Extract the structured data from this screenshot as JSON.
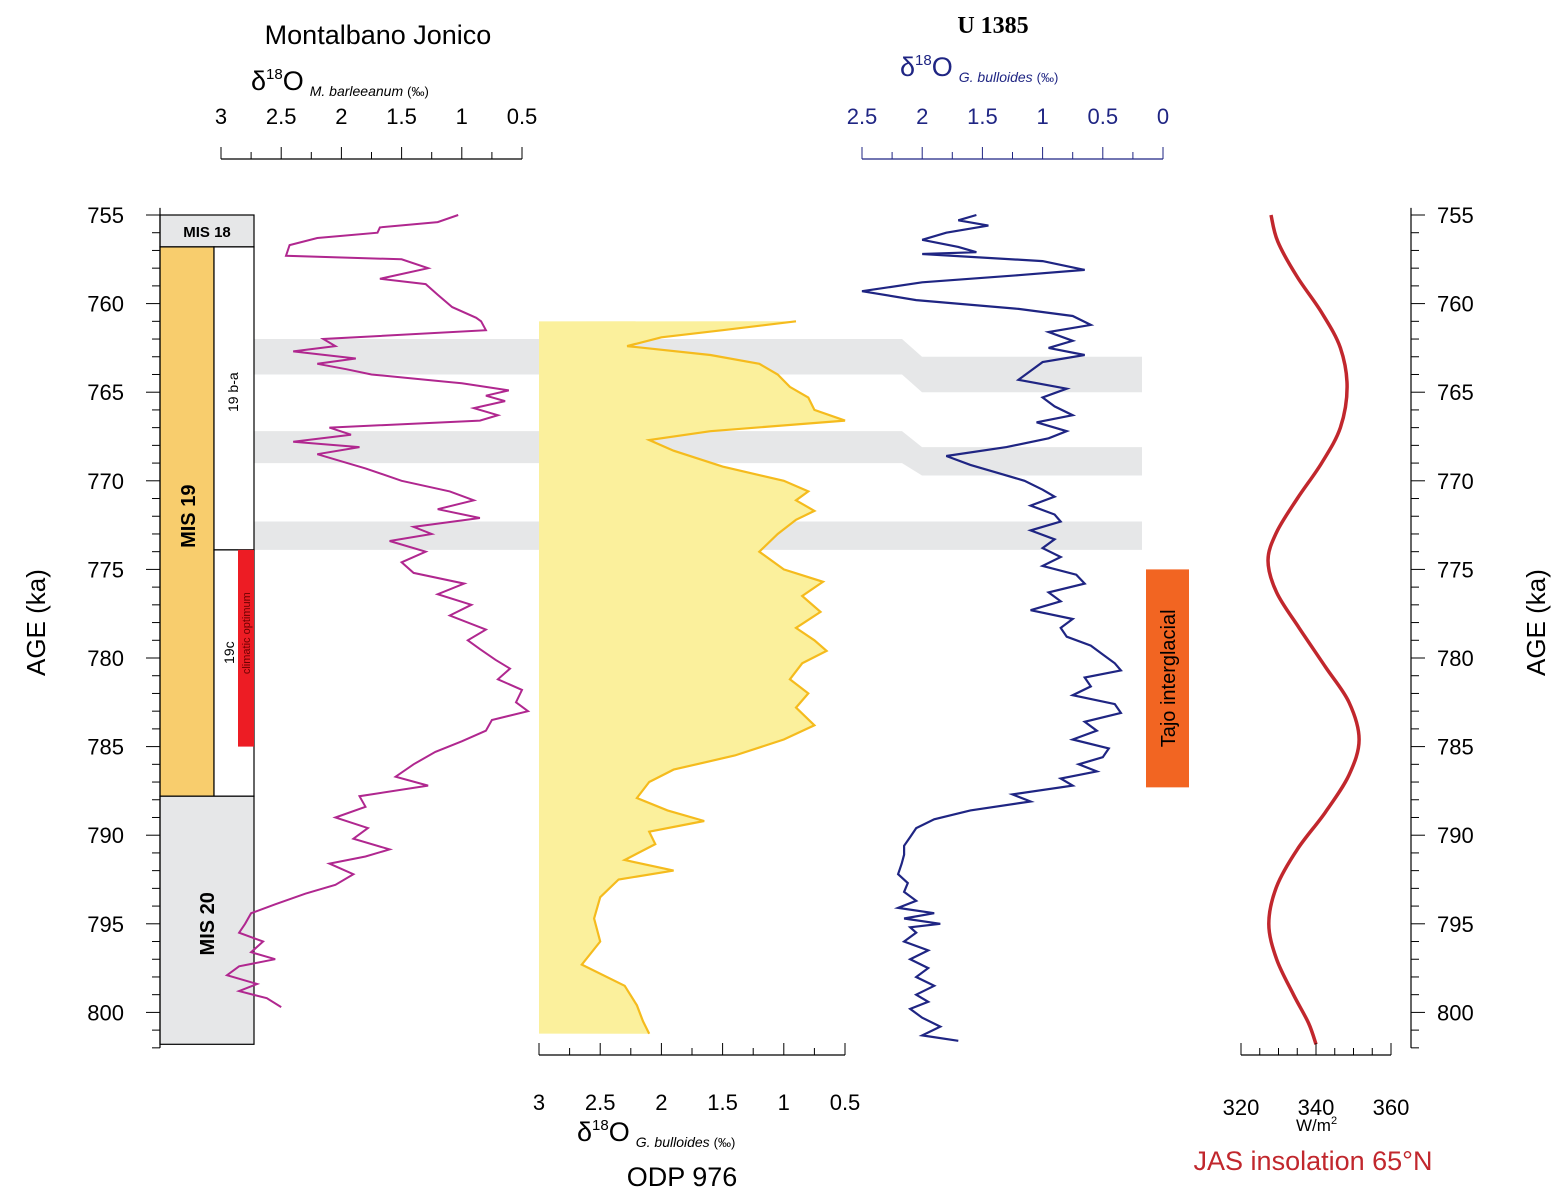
{
  "chart_data": {
    "type": "line",
    "y_axis": {
      "label": "AGE (ka)",
      "ticks": [
        755,
        760,
        765,
        770,
        775,
        780,
        785,
        790,
        795,
        800
      ],
      "range": [
        755,
        802
      ]
    },
    "stages": {
      "mis18": "MIS 18",
      "mis19": "MIS 19",
      "mis20": "MIS 20",
      "sub_19ba": "19 b-a",
      "sub_19c": "19c",
      "climatic_optimum": "climatic optimum",
      "mis18_range": [
        755,
        756.8
      ],
      "mis19_range": [
        756.8,
        787.8
      ],
      "mis20_range": [
        787.8,
        801.8
      ],
      "sub_19ba_range": [
        756.8,
        773.9
      ],
      "sub_19c_range": [
        773.9,
        787.8
      ],
      "climatic_optimum_range": [
        773.9,
        785
      ]
    },
    "montalbano": {
      "title": "Montalbano Jonico",
      "delta": "δ",
      "sup": "18",
      "o": "O",
      "species": "M. barleeanum",
      "unit": "(‰)",
      "ticks": [
        3,
        2.5,
        2,
        1.5,
        1,
        0.5
      ],
      "tick_labels": [
        "3",
        "2.5",
        "2",
        "1.5",
        "1",
        "0.5"
      ],
      "color": "#b0278f",
      "series": [
        [
          755,
          1.03
        ],
        [
          755.4,
          1.2
        ],
        [
          755.7,
          1.68
        ],
        [
          756,
          1.7
        ],
        [
          756.3,
          2.2
        ],
        [
          756.7,
          2.43
        ],
        [
          757.3,
          2.46
        ],
        [
          757.5,
          1.5
        ],
        [
          758,
          1.28
        ],
        [
          758.6,
          1.68
        ],
        [
          758.9,
          1.3
        ],
        [
          759.5,
          1.2
        ],
        [
          760.2,
          1.08
        ],
        [
          760.8,
          0.88
        ],
        [
          761,
          0.84
        ],
        [
          761.5,
          0.8
        ],
        [
          762,
          2.15
        ],
        [
          762.4,
          2.05
        ],
        [
          762.7,
          2.4
        ],
        [
          763.1,
          1.88
        ],
        [
          763.4,
          2.2
        ],
        [
          763.7,
          1.96
        ],
        [
          764,
          1.75
        ],
        [
          764.5,
          1.0
        ],
        [
          764.9,
          0.61
        ],
        [
          765.2,
          0.8
        ],
        [
          765.5,
          0.64
        ],
        [
          765.9,
          0.9
        ],
        [
          766.3,
          0.7
        ],
        [
          766.6,
          0.85
        ],
        [
          767,
          2.1
        ],
        [
          767.4,
          1.92
        ],
        [
          767.8,
          2.4
        ],
        [
          768.1,
          1.85
        ],
        [
          768.5,
          2.2
        ],
        [
          768.9,
          2.0
        ],
        [
          769.3,
          1.8
        ],
        [
          770,
          1.5
        ],
        [
          770.6,
          1.1
        ],
        [
          771.1,
          0.9
        ],
        [
          771.6,
          1.2
        ],
        [
          772.1,
          0.85
        ],
        [
          772.6,
          1.4
        ],
        [
          773,
          1.25
        ],
        [
          773.4,
          1.6
        ],
        [
          774,
          1.3
        ],
        [
          774.6,
          1.5
        ],
        [
          775.2,
          1.4
        ],
        [
          775.8,
          0.98
        ],
        [
          776.4,
          1.2
        ],
        [
          777,
          0.92
        ],
        [
          777.6,
          1.1
        ],
        [
          778.4,
          0.8
        ],
        [
          779,
          0.95
        ],
        [
          779.5,
          0.85
        ],
        [
          780.1,
          0.72
        ],
        [
          780.6,
          0.6
        ],
        [
          781.2,
          0.7
        ],
        [
          781.8,
          0.5
        ],
        [
          782.5,
          0.55
        ],
        [
          783,
          0.45
        ],
        [
          783.5,
          0.75
        ],
        [
          784.1,
          0.8
        ],
        [
          784.7,
          1.0
        ],
        [
          785.3,
          1.22
        ],
        [
          786,
          1.4
        ],
        [
          786.7,
          1.55
        ],
        [
          787.2,
          1.28
        ],
        [
          787.8,
          1.85
        ],
        [
          788.4,
          1.8
        ],
        [
          789,
          2.05
        ],
        [
          789.6,
          1.78
        ],
        [
          790.2,
          1.9
        ],
        [
          790.8,
          1.6
        ],
        [
          791.2,
          1.8
        ],
        [
          791.6,
          2.1
        ],
        [
          792.2,
          1.9
        ],
        [
          792.8,
          2.05
        ],
        [
          793.3,
          2.3
        ],
        [
          793.9,
          2.55
        ],
        [
          794.4,
          2.75
        ],
        [
          795,
          2.8
        ],
        [
          795.5,
          2.85
        ],
        [
          796,
          2.65
        ],
        [
          796.6,
          2.75
        ],
        [
          797,
          2.55
        ],
        [
          797.4,
          2.85
        ],
        [
          797.9,
          2.95
        ],
        [
          798.4,
          2.7
        ],
        [
          798.8,
          2.85
        ],
        [
          799.2,
          2.62
        ],
        [
          799.7,
          2.5
        ]
      ]
    },
    "odp976": {
      "title": "ODP 976",
      "delta": "δ",
      "sup": "18",
      "o": "O",
      "species": "G. bulloides",
      "unit": "(‰)",
      "ticks": [
        3,
        2.5,
        2,
        1.5,
        1,
        0.5
      ],
      "tick_labels": [
        "3",
        "2.5",
        "2",
        "1.5",
        "1",
        "0.5"
      ],
      "fill_color": "#fbf09c",
      "line_color": "#f5bb1d",
      "series": [
        [
          761,
          0.9
        ],
        [
          761.5,
          1.5
        ],
        [
          761.9,
          2.0
        ],
        [
          762.4,
          2.28
        ],
        [
          762.9,
          1.6
        ],
        [
          763.4,
          1.2
        ],
        [
          764,
          1.05
        ],
        [
          764.7,
          0.95
        ],
        [
          765.3,
          0.8
        ],
        [
          766,
          0.75
        ],
        [
          766.6,
          0.5
        ],
        [
          767.2,
          1.6
        ],
        [
          767.7,
          2.1
        ],
        [
          768.3,
          1.9
        ],
        [
          769.2,
          1.5
        ],
        [
          770,
          1.0
        ],
        [
          770.6,
          0.8
        ],
        [
          771.1,
          0.9
        ],
        [
          771.7,
          0.75
        ],
        [
          772.2,
          0.9
        ],
        [
          773,
          1.05
        ],
        [
          774,
          1.2
        ],
        [
          775,
          1.0
        ],
        [
          775.7,
          0.68
        ],
        [
          776.5,
          0.85
        ],
        [
          777.4,
          0.7
        ],
        [
          778.3,
          0.9
        ],
        [
          779,
          0.75
        ],
        [
          779.6,
          0.65
        ],
        [
          780.3,
          0.85
        ],
        [
          781.2,
          0.95
        ],
        [
          782,
          0.8
        ],
        [
          782.8,
          0.9
        ],
        [
          783.8,
          0.75
        ],
        [
          784.6,
          1.0
        ],
        [
          785.5,
          1.4
        ],
        [
          786.3,
          1.9
        ],
        [
          787,
          2.1
        ],
        [
          787.9,
          2.2
        ],
        [
          788.6,
          1.95
        ],
        [
          789.2,
          1.65
        ],
        [
          789.8,
          2.1
        ],
        [
          790.5,
          2.05
        ],
        [
          791.4,
          2.3
        ],
        [
          792,
          1.9
        ],
        [
          792.5,
          2.35
        ],
        [
          793.5,
          2.5
        ],
        [
          794.7,
          2.55
        ],
        [
          796,
          2.5
        ],
        [
          797.3,
          2.65
        ],
        [
          798.5,
          2.3
        ],
        [
          799.6,
          2.2
        ],
        [
          800.5,
          2.15
        ],
        [
          801.2,
          2.1
        ]
      ]
    },
    "u1385": {
      "title": "U 1385",
      "delta": "δ",
      "sup": "18",
      "o": "O",
      "species": "G. bulloides",
      "unit": "(‰)",
      "ticks": [
        2.5,
        2,
        1.5,
        1,
        0.5,
        0
      ],
      "tick_labels": [
        "2.5",
        "2",
        "1.5",
        "1",
        "0.5",
        "0"
      ],
      "color": "#1f2583",
      "series": [
        [
          755,
          1.55
        ],
        [
          755.3,
          1.7
        ],
        [
          755.6,
          1.45
        ],
        [
          756,
          1.8
        ],
        [
          756.4,
          2.0
        ],
        [
          756.8,
          1.7
        ],
        [
          757.1,
          1.55
        ],
        [
          757.2,
          2.0
        ],
        [
          757.6,
          1.0
        ],
        [
          758.1,
          0.65
        ],
        [
          758.4,
          1.2
        ],
        [
          758.8,
          2.0
        ],
        [
          759.3,
          2.5
        ],
        [
          759.8,
          2.05
        ],
        [
          760.3,
          1.2
        ],
        [
          760.7,
          0.75
        ],
        [
          761.2,
          0.6
        ],
        [
          761.6,
          0.95
        ],
        [
          762.1,
          0.75
        ],
        [
          762.5,
          0.95
        ],
        [
          762.9,
          0.65
        ],
        [
          763.3,
          1.0
        ],
        [
          763.8,
          1.1
        ],
        [
          764.3,
          1.2
        ],
        [
          764.8,
          0.8
        ],
        [
          765.3,
          1.0
        ],
        [
          765.8,
          0.9
        ],
        [
          766.3,
          0.75
        ],
        [
          766.7,
          1.05
        ],
        [
          767.2,
          0.8
        ],
        [
          767.6,
          0.95
        ],
        [
          768.1,
          1.3
        ],
        [
          768.6,
          1.8
        ],
        [
          769.1,
          1.6
        ],
        [
          769.5,
          1.4
        ],
        [
          770,
          1.15
        ],
        [
          770.5,
          1.0
        ],
        [
          770.9,
          0.9
        ],
        [
          771.4,
          1.1
        ],
        [
          771.9,
          0.9
        ],
        [
          772.3,
          0.85
        ],
        [
          772.8,
          1.1
        ],
        [
          773.3,
          0.9
        ],
        [
          773.8,
          1.0
        ],
        [
          774.3,
          0.85
        ],
        [
          774.8,
          1.0
        ],
        [
          775.3,
          0.72
        ],
        [
          775.8,
          0.65
        ],
        [
          776.3,
          0.95
        ],
        [
          776.8,
          0.85
        ],
        [
          777.3,
          1.1
        ],
        [
          777.8,
          0.75
        ],
        [
          778.3,
          0.85
        ],
        [
          778.8,
          0.8
        ],
        [
          779.3,
          0.6
        ],
        [
          779.8,
          0.5
        ],
        [
          780.3,
          0.4
        ],
        [
          780.7,
          0.35
        ],
        [
          781.1,
          0.65
        ],
        [
          781.6,
          0.6
        ],
        [
          782.1,
          0.75
        ],
        [
          782.6,
          0.4
        ],
        [
          783.1,
          0.35
        ],
        [
          783.6,
          0.65
        ],
        [
          784.1,
          0.55
        ],
        [
          784.6,
          0.75
        ],
        [
          785.1,
          0.45
        ],
        [
          785.6,
          0.5
        ],
        [
          786,
          0.7
        ],
        [
          786.4,
          0.55
        ],
        [
          786.8,
          0.85
        ],
        [
          787.2,
          0.75
        ],
        [
          787.7,
          1.25
        ],
        [
          788.1,
          1.1
        ],
        [
          788.6,
          1.6
        ],
        [
          789.1,
          1.9
        ],
        [
          789.6,
          2.05
        ],
        [
          790.1,
          2.1
        ],
        [
          790.6,
          2.15
        ],
        [
          791.1,
          2.15
        ],
        [
          791.6,
          2.17
        ],
        [
          792.2,
          2.2
        ],
        [
          792.7,
          2.12
        ],
        [
          793.2,
          2.15
        ],
        [
          793.7,
          2.05
        ],
        [
          794.1,
          2.2
        ],
        [
          794.4,
          1.9
        ],
        [
          794.7,
          2.15
        ],
        [
          795.0,
          1.85
        ],
        [
          795.2,
          2.1
        ],
        [
          795.5,
          2.05
        ],
        [
          796,
          2.15
        ],
        [
          796.5,
          1.95
        ],
        [
          797,
          2.1
        ],
        [
          797.5,
          1.95
        ],
        [
          798,
          2.05
        ],
        [
          798.5,
          1.9
        ],
        [
          799,
          2.05
        ],
        [
          799.4,
          1.95
        ],
        [
          799.8,
          2.1
        ],
        [
          800.3,
          2.0
        ],
        [
          800.8,
          1.85
        ],
        [
          801.3,
          2.0
        ],
        [
          801.6,
          1.7
        ]
      ]
    },
    "tajo": {
      "label": "Tajo interglacial",
      "color": "#f26522",
      "range": [
        775,
        787.3
      ]
    },
    "insolation": {
      "title": "JAS insolation 65°N",
      "unit": "W/m",
      "unit_sup": "2",
      "ticks": [
        320,
        340,
        360
      ],
      "tick_labels": [
        "320",
        "340",
        "360"
      ],
      "color": "#c1272d",
      "series": [
        [
          755,
          328
        ],
        [
          756.5,
          329.8
        ],
        [
          758.5,
          335
        ],
        [
          760.5,
          341.5
        ],
        [
          762.5,
          346.5
        ],
        [
          764.7,
          348.3
        ],
        [
          767,
          346.5
        ],
        [
          769,
          341.5
        ],
        [
          771,
          335
        ],
        [
          772.9,
          329.5
        ],
        [
          774.5,
          327.2
        ],
        [
          776.3,
          329.5
        ],
        [
          778.3,
          335.5
        ],
        [
          780.5,
          342.5
        ],
        [
          782.5,
          348.8
        ],
        [
          784.6,
          351.5
        ],
        [
          786.6,
          348.8
        ],
        [
          788.7,
          342.5
        ],
        [
          790.8,
          335
        ],
        [
          792.9,
          329.5
        ],
        [
          795,
          327.4
        ],
        [
          797,
          329.5
        ],
        [
          799,
          334
        ],
        [
          800.6,
          338
        ],
        [
          801.8,
          340
        ]
      ]
    },
    "correlation_bands": [
      {
        "left": [
          762,
          764
        ],
        "right": [
          763,
          765
        ]
      },
      {
        "left": [
          767.2,
          769
        ],
        "right": [
          768.1,
          769.7
        ]
      },
      {
        "left": [
          772.3,
          773.9
        ],
        "right": [
          772.3,
          773.9
        ]
      }
    ]
  }
}
